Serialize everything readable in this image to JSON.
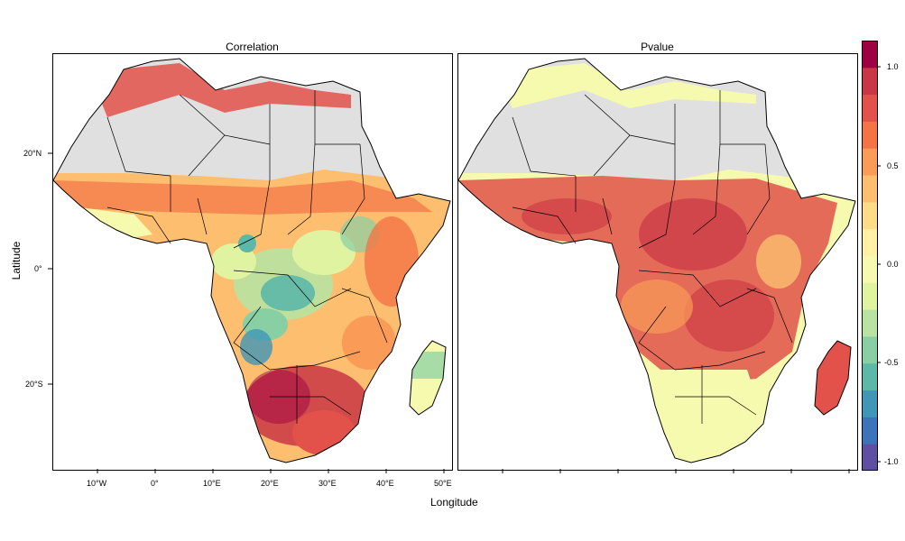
{
  "panels": {
    "left_title": "Correlation",
    "right_title": "Pvalue"
  },
  "axes": {
    "xlabel": "Longitude",
    "ylabel": "Latitude",
    "x_ticks": [
      "10°W",
      "0°",
      "10°E",
      "20°E",
      "30°E",
      "40°E",
      "50°E"
    ],
    "y_ticks": [
      "20°N",
      "0°",
      "20°S"
    ]
  },
  "colorbar": {
    "range": [
      -1.1,
      1.2
    ],
    "labels": [
      "1.0",
      "0.5",
      "0.0",
      "-0.5",
      "-1.0"
    ],
    "colors": [
      "#5e4fa2",
      "#3d73b8",
      "#3f96b7",
      "#5cb8a7",
      "#88cfa4",
      "#b8e3a1",
      "#e0f3a1",
      "#f6faae",
      "#fff0a6",
      "#fedb87",
      "#fdbf6f",
      "#fa9b58",
      "#f47446",
      "#e2514a",
      "#c93645",
      "#9e0142"
    ]
  },
  "map_colors": {
    "masked": "#e0e0e0",
    "border": "#000000"
  }
}
